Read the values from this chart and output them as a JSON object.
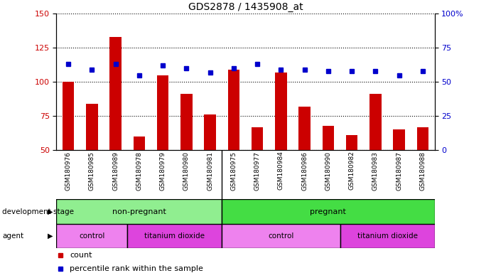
{
  "title": "GDS2878 / 1435908_at",
  "samples": [
    "GSM180976",
    "GSM180985",
    "GSM180989",
    "GSM180978",
    "GSM180979",
    "GSM180980",
    "GSM180981",
    "GSM180975",
    "GSM180977",
    "GSM180984",
    "GSM180986",
    "GSM180990",
    "GSM180982",
    "GSM180983",
    "GSM180987",
    "GSM180988"
  ],
  "counts": [
    100,
    84,
    133,
    60,
    105,
    91,
    76,
    109,
    67,
    107,
    82,
    68,
    61,
    91,
    65,
    67
  ],
  "percentile_pct": [
    63,
    59,
    63,
    55,
    62,
    60,
    57,
    60,
    63,
    59,
    59,
    58,
    58,
    58,
    55,
    58
  ],
  "ylim_left": [
    50,
    150
  ],
  "ylim_right": [
    0,
    100
  ],
  "yticks_left": [
    50,
    75,
    100,
    125,
    150
  ],
  "yticks_right": [
    0,
    25,
    50,
    75,
    100
  ],
  "bar_color": "#cc0000",
  "dot_color": "#0000cc",
  "bg_color": "#ffffff",
  "bar_width": 0.5,
  "dev_colors": {
    "non-pregnant": "#90ee90",
    "pregnant": "#44dd44"
  },
  "agent_colors": {
    "control": "#ee82ee",
    "titanium_dioxide": "#dd44dd"
  },
  "tick_area_bg": "#cccccc",
  "non_pregnant_count": 7,
  "pregnant_count": 9,
  "control1_count": 3,
  "tio2_1_count": 4,
  "control2_count": 5,
  "tio2_2_count": 4
}
